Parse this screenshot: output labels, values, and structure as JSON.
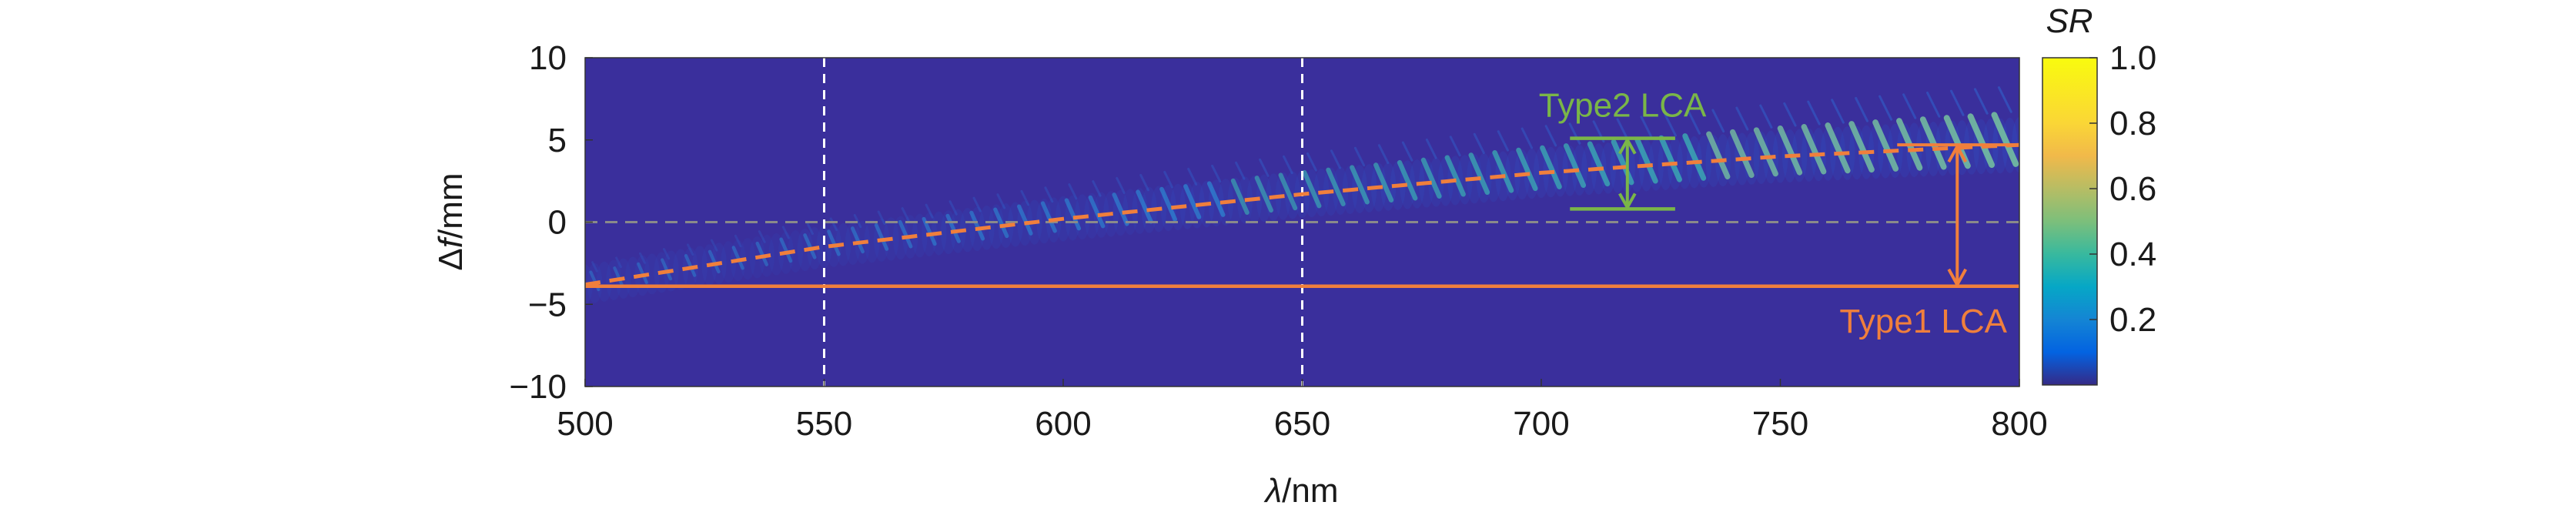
{
  "chart_data": {
    "type": "heatmap",
    "title": "",
    "xlabel": {
      "italic": "λ",
      "rest": "/nm"
    },
    "ylabel": {
      "prefix": "Δ",
      "italic": "f",
      "rest": "/mm"
    },
    "xlim": [
      500,
      800
    ],
    "ylim": [
      -10,
      10
    ],
    "x_ticks": [
      500,
      550,
      600,
      650,
      700,
      750,
      800
    ],
    "y_ticks": [
      10,
      5,
      0,
      -5,
      -10
    ],
    "y_tick_labels": [
      "10",
      "5",
      "0",
      "−5",
      "−10"
    ],
    "colorbar": {
      "label": "SR",
      "range": [
        0,
        1
      ],
      "ticks": [
        1.0,
        0.8,
        0.6,
        0.4,
        0.2
      ],
      "tick_labels": [
        "1.0",
        "0.8",
        "0.6",
        "0.4",
        "0.2"
      ],
      "colormap": "parula"
    },
    "focal_shift_curve": {
      "name": "focal shift",
      "x": [
        500,
        550,
        600,
        650,
        700,
        750,
        800
      ],
      "y": [
        -3.8,
        -1.5,
        0.2,
        1.7,
        3.0,
        4.0,
        4.7
      ],
      "style": "dashed",
      "color": "#f07f3c"
    },
    "reference_lines": {
      "vertical_dashed_x": [
        550,
        650
      ],
      "horizontal_dashed_y": 0,
      "type1_solid_y": -3.9
    },
    "annotations": {
      "type2": {
        "text": "Type2 LCA",
        "color": "#7ab648",
        "x": 718,
        "y_top": 5.1,
        "y_bottom": 0.8,
        "x_span": [
          706,
          728
        ]
      },
      "type1": {
        "text": "Type1 LCA",
        "color": "#f07f3c",
        "x": 787,
        "y_top": 4.7,
        "y_bottom": -3.9
      }
    }
  }
}
